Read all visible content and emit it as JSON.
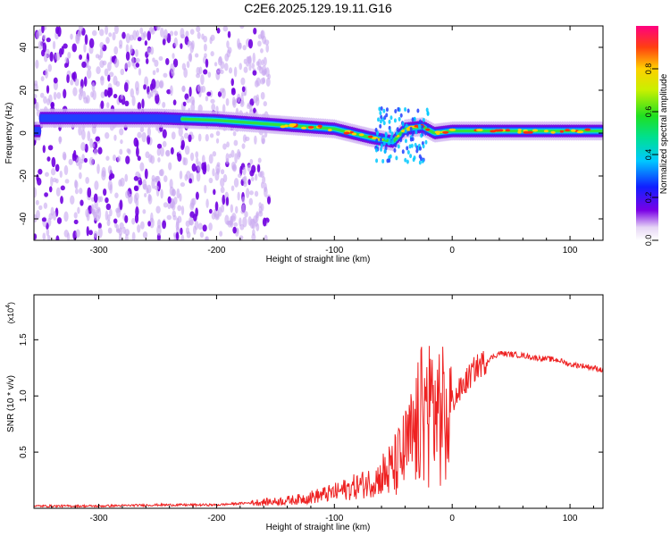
{
  "title": "C2E6.2025.129.19.11.G16",
  "colors": {
    "snr_line": "#ee2222",
    "axis": "#000000"
  },
  "chart_data": [
    {
      "type": "heatmap",
      "xlabel": "Height of straight line (km)",
      "ylabel": "Frequency (Hz)",
      "xlim": [
        -355,
        128
      ],
      "ylim": [
        -50,
        50
      ],
      "x_ticks": [
        -300,
        -200,
        -100,
        0,
        100
      ],
      "x_tick_labels": [
        "-300",
        "-200",
        "-100",
        "0",
        "100"
      ],
      "y_ticks": [
        -40,
        -20,
        0,
        20,
        40
      ],
      "y_tick_labels": [
        "-40",
        "-20",
        "0",
        "20",
        "40"
      ],
      "colorbar": {
        "label": "Normalized spectral amplitude",
        "range": [
          0,
          1
        ],
        "ticks": [
          0.0,
          0.2,
          0.4,
          0.6,
          0.8
        ],
        "tick_labels": [
          "0.0",
          "0.2",
          "0.4",
          "0.6",
          "0.8"
        ]
      },
      "ridge": [
        {
          "x": -350,
          "f": 7
        },
        {
          "x": -250,
          "f": 7
        },
        {
          "x": -200,
          "f": 6
        },
        {
          "x": -150,
          "f": 4
        },
        {
          "x": -100,
          "f": 2
        },
        {
          "x": -70,
          "f": -2
        },
        {
          "x": -50,
          "f": -4
        },
        {
          "x": -40,
          "f": 2
        },
        {
          "x": -25,
          "f": 3
        },
        {
          "x": -15,
          "f": 0
        },
        {
          "x": 0,
          "f": 1
        },
        {
          "x": 50,
          "f": 1
        },
        {
          "x": 100,
          "f": 1
        },
        {
          "x": 125,
          "f": 1
        }
      ],
      "noise_end_x": -155,
      "grid": false
    },
    {
      "type": "line",
      "xlabel": "Height of straight line (km)",
      "ylabel": "SNR (10 * v/v)",
      "y_scale_label": "(x10",
      "y_scale_exp": "4",
      "xlim": [
        -355,
        128
      ],
      "ylim": [
        0,
        1.9
      ],
      "x_ticks": [
        -300,
        -200,
        -100,
        0,
        100
      ],
      "x_tick_labels": [
        "-300",
        "-200",
        "-100",
        "0",
        "100"
      ],
      "y_ticks": [
        0.5,
        1.0,
        1.5
      ],
      "y_tick_labels": [
        "0.5",
        "1.0",
        "1.5"
      ],
      "series": [
        {
          "color": "#ee2222",
          "x": [
            -355,
            -300,
            -250,
            -200,
            -170,
            -150,
            -130,
            -110,
            -100,
            -90,
            -80,
            -70,
            -60,
            -50,
            -40,
            -30,
            -25,
            -20,
            -15,
            -10,
            -5,
            0,
            10,
            20,
            30,
            40,
            50,
            60,
            70,
            80,
            90,
            100,
            110,
            120,
            128
          ],
          "y": [
            0.02,
            0.02,
            0.03,
            0.03,
            0.05,
            0.06,
            0.08,
            0.12,
            0.14,
            0.17,
            0.2,
            0.23,
            0.28,
            0.35,
            0.5,
            0.7,
            0.85,
            0.9,
            0.9,
            0.85,
            0.75,
            0.95,
            1.1,
            1.25,
            1.32,
            1.38,
            1.37,
            1.36,
            1.34,
            1.33,
            1.32,
            1.28,
            1.27,
            1.25,
            1.23
          ]
        }
      ],
      "grid": false
    }
  ]
}
